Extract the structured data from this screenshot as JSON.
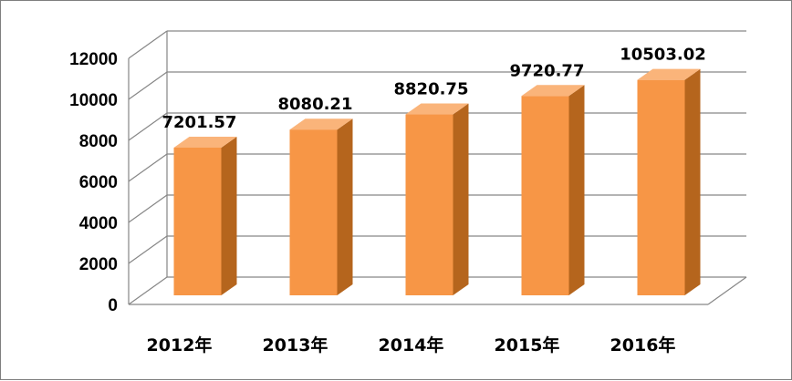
{
  "chart_data": {
    "type": "bar",
    "categories": [
      "2012年",
      "2013年",
      "2014年",
      "2015年",
      "2016年"
    ],
    "values": [
      7201.57,
      8080.21,
      8820.75,
      9720.77,
      10503.02
    ],
    "data_labels": [
      "7201.57",
      "8080.21",
      "8820.75",
      "9720.77",
      "10503.02"
    ],
    "y_ticks": [
      "0",
      "2000",
      "4000",
      "6000",
      "8000",
      "10000",
      "12000"
    ],
    "ylim": [
      0,
      12000
    ],
    "grid": true,
    "three_d": true,
    "colors": {
      "bar_front": "#F79646",
      "bar_side": "#B5651D",
      "bar_top": "#FAB47A",
      "grid": "#868686"
    }
  }
}
